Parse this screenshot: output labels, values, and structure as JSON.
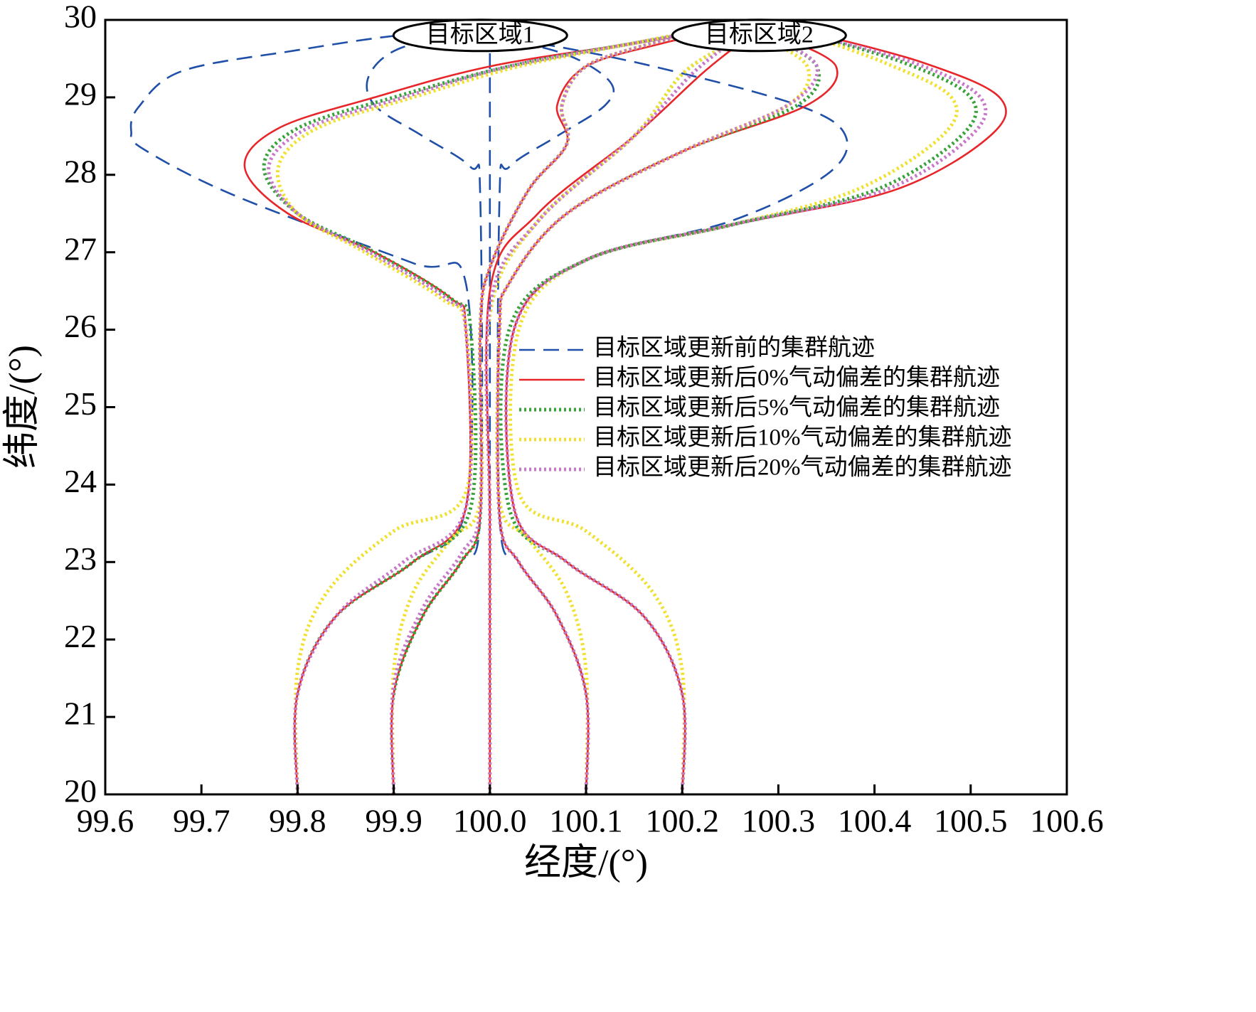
{
  "chart_data": {
    "type": "line",
    "x_label": "经度/(°)",
    "y_label": "纬度/(°)",
    "xlim": [
      99.6,
      100.6
    ],
    "ylim": [
      20,
      30
    ],
    "xticks": [
      99.6,
      99.7,
      99.8,
      99.9,
      {
        "value": 100,
        "label": "100.0"
      },
      100.1,
      100.2,
      100.3,
      100.4,
      100.5,
      100.6
    ],
    "yticks": [
      20,
      21,
      22,
      23,
      24,
      25,
      26,
      27,
      28,
      29,
      30
    ],
    "legend": "center right",
    "annotations": [
      {
        "text": "目标区域1",
        "x": 99.99,
        "y": 29.8
      },
      {
        "text": "目标区域2",
        "x": 100.28,
        "y": 29.8
      }
    ],
    "series": [
      {
        "name": "目标区域更新前的集群航迹",
        "color": "#1f4fa8",
        "dash": "dashed",
        "lines": [
          {
            "x": [
              99.8,
              99.8,
              99.84,
              99.92,
              99.975,
              99.975,
              99.92,
              99.735,
              99.64,
              99.627,
              99.635,
              99.68,
              99.8,
              99.905,
              99.98
            ],
            "y": [
              20,
              21.3,
              22.3,
              23.0,
              23.7,
              26.6,
              26.86,
              27.73,
              28.33,
              28.56,
              28.88,
              29.34,
              29.61,
              29.8,
              29.85
            ]
          },
          {
            "x": [
              99.9,
              99.9,
              99.93,
              99.97,
              99.99,
              99.99,
              99.98,
              99.93,
              99.88,
              99.875,
              99.91,
              99.99
            ],
            "y": [
              20,
              21.3,
              22.3,
              23.0,
              23.6,
              27.7,
              28.1,
              28.5,
              28.9,
              29.3,
              29.65,
              29.8
            ]
          },
          {
            "x": [
              100.0,
              100.0
            ],
            "y": [
              20,
              29.8
            ]
          },
          {
            "x": [
              100.1,
              100.1,
              100.07,
              100.03,
              100.01,
              100.01,
              100.02,
              100.07,
              100.12,
              100.125,
              100.08,
              100.0
            ],
            "y": [
              20,
              21.3,
              22.3,
              23.0,
              23.6,
              27.7,
              28.1,
              28.5,
              28.9,
              29.2,
              29.55,
              29.8
            ]
          },
          {
            "x": [
              100.2,
              100.2,
              100.16,
              100.08,
              100.025,
              100.025,
              100.1,
              100.25,
              100.35,
              100.37,
              100.32,
              100.17,
              100.05,
              99.99
            ],
            "y": [
              20,
              21.3,
              22.3,
              23.0,
              23.7,
              26.0,
              26.9,
              27.4,
              28.0,
              28.5,
              28.9,
              29.4,
              29.7,
              29.8
            ]
          }
        ]
      },
      {
        "name": "目标区域更新后0%气动偏差的集群航迹",
        "color": "#e8262a",
        "dash": "solid",
        "lines": [
          {
            "x": [
              99.8,
              99.8,
              99.84,
              99.92,
              99.975,
              99.975,
              99.96,
              99.88,
              99.79,
              99.745,
              99.78,
              99.88,
              100.0,
              100.15,
              100.23
            ],
            "y": [
              20,
              21.3,
              22.3,
              23.0,
              23.7,
              26.0,
              26.4,
              27.0,
              27.5,
              28.1,
              28.6,
              29.0,
              29.4,
              29.7,
              29.85
            ]
          },
          {
            "x": [
              99.9,
              99.9,
              99.93,
              99.97,
              99.99,
              99.99,
              100.0,
              100.04,
              100.08,
              100.07,
              100.1,
              100.18,
              100.22
            ],
            "y": [
              20,
              21.3,
              22.3,
              23.0,
              23.6,
              26.0,
              26.8,
              27.8,
              28.4,
              28.9,
              29.4,
              29.7,
              29.8
            ]
          },
          {
            "x": [
              100.0,
              100.0,
              100.0,
              100.05,
              100.15,
              100.22,
              100.26
            ],
            "y": [
              20,
              23.5,
              26.5,
              27.5,
              28.5,
              29.3,
              29.7
            ]
          },
          {
            "x": [
              100.1,
              100.1,
              100.07,
              100.03,
              100.01,
              100.01,
              100.02,
              100.08,
              100.2,
              100.33,
              100.36,
              100.3
            ],
            "y": [
              20,
              21.3,
              22.3,
              23.0,
              23.6,
              26.0,
              26.6,
              27.5,
              28.3,
              28.9,
              29.4,
              29.8
            ]
          },
          {
            "x": [
              100.2,
              100.2,
              100.16,
              100.08,
              100.025,
              100.025,
              100.1,
              100.25,
              100.42,
              100.52,
              100.53,
              100.45,
              100.33
            ],
            "y": [
              20,
              21.3,
              22.3,
              23.0,
              23.7,
              26.0,
              26.9,
              27.35,
              27.8,
              28.5,
              29.0,
              29.45,
              29.85
            ]
          }
        ]
      },
      {
        "name": "目标区域更新后5%气动偏差的集群航迹",
        "color": "#3aa23a",
        "dash": "dotted",
        "lines": [
          {
            "x": [
              99.8,
              99.8,
              99.84,
              99.92,
              99.98,
              99.98,
              99.96,
              99.88,
              99.8,
              99.765,
              99.8,
              99.9,
              100.02,
              100.15,
              100.22
            ],
            "y": [
              20,
              21.3,
              22.3,
              23.0,
              23.7,
              26.0,
              26.4,
              27.0,
              27.5,
              28.1,
              28.6,
              29.0,
              29.4,
              29.7,
              29.85
            ]
          },
          {
            "x": [
              99.9,
              99.9,
              99.93,
              99.97,
              99.99,
              99.99,
              100.0,
              100.04,
              100.08,
              100.075,
              100.1,
              100.17,
              100.21
            ],
            "y": [
              20,
              21.3,
              22.3,
              23.0,
              23.6,
              26.0,
              26.8,
              27.8,
              28.4,
              28.9,
              29.4,
              29.7,
              29.8
            ]
          },
          {
            "x": [
              100.0,
              100.0,
              100.0,
              100.05,
              100.15,
              100.2,
              100.25
            ],
            "y": [
              20,
              23.5,
              26.2,
              27.4,
              28.5,
              29.3,
              29.7
            ]
          },
          {
            "x": [
              100.1,
              100.1,
              100.07,
              100.03,
              100.01,
              100.01,
              100.02,
              100.08,
              100.2,
              100.32,
              100.34,
              100.29
            ],
            "y": [
              20,
              21.3,
              22.3,
              23.0,
              23.6,
              26.0,
              26.6,
              27.5,
              28.3,
              28.9,
              29.4,
              29.8
            ]
          },
          {
            "x": [
              100.2,
              100.2,
              100.16,
              100.08,
              100.02,
              100.02,
              100.1,
              100.25,
              100.4,
              100.49,
              100.5,
              100.43,
              100.32
            ],
            "y": [
              20,
              21.3,
              22.3,
              23.0,
              23.7,
              26.0,
              26.9,
              27.35,
              27.8,
              28.5,
              29.0,
              29.45,
              29.85
            ]
          }
        ]
      },
      {
        "name": "目标区域更新后10%气动偏差的集群航迹",
        "color": "#f0e030",
        "dash": "dotted",
        "lines": [
          {
            "x": [
              99.8,
              99.8,
              99.83,
              99.9,
              99.975,
              99.975,
              99.95,
              99.87,
              99.8,
              99.78,
              99.82,
              99.92,
              100.03,
              100.15,
              100.21
            ],
            "y": [
              20,
              21.6,
              22.6,
              23.4,
              23.9,
              26.0,
              26.4,
              27.0,
              27.5,
              28.1,
              28.6,
              29.0,
              29.4,
              29.7,
              29.85
            ]
          },
          {
            "x": [
              99.9,
              99.9,
              99.92,
              99.96,
              99.99,
              99.99,
              100.0,
              100.04,
              100.08,
              100.075,
              100.1,
              100.17,
              100.21
            ],
            "y": [
              20,
              21.6,
              22.6,
              23.3,
              23.8,
              26.0,
              26.8,
              27.8,
              28.4,
              28.9,
              29.4,
              29.7,
              29.8
            ]
          },
          {
            "x": [
              100.0,
              100.0,
              100.0,
              100.05,
              100.15,
              100.2,
              100.25
            ],
            "y": [
              20,
              23.5,
              26.2,
              27.4,
              28.5,
              29.3,
              29.7
            ]
          },
          {
            "x": [
              100.1,
              100.1,
              100.08,
              100.04,
              100.01,
              100.01,
              100.02,
              100.08,
              100.2,
              100.31,
              100.33,
              100.28
            ],
            "y": [
              20,
              21.6,
              22.6,
              23.3,
              23.8,
              26.0,
              26.6,
              27.5,
              28.3,
              28.9,
              29.4,
              29.8
            ]
          },
          {
            "x": [
              100.2,
              100.2,
              100.17,
              100.1,
              100.03,
              100.03,
              100.1,
              100.25,
              100.38,
              100.47,
              100.48,
              100.41,
              100.32
            ],
            "y": [
              20,
              21.6,
              22.6,
              23.4,
              23.9,
              26.0,
              26.9,
              27.35,
              27.8,
              28.5,
              29.0,
              29.45,
              29.85
            ]
          }
        ]
      },
      {
        "name": "目标区域更新后20%气动偏差的集群航迹",
        "color": "#c878c8",
        "dash": "dotted",
        "lines": [
          {
            "x": [
              99.8,
              99.8,
              99.84,
              99.91,
              99.975,
              99.975,
              99.955,
              99.875,
              99.8,
              99.77,
              99.81,
              99.91,
              100.02,
              100.15,
              100.22
            ],
            "y": [
              20,
              21.3,
              22.3,
              23.0,
              23.7,
              26.0,
              26.4,
              27.0,
              27.5,
              28.1,
              28.6,
              29.0,
              29.4,
              29.7,
              29.85
            ]
          },
          {
            "x": [
              99.9,
              99.9,
              99.93,
              99.97,
              99.99,
              99.99,
              100.0,
              100.04,
              100.08,
              100.075,
              100.1,
              100.17,
              100.21
            ],
            "y": [
              20,
              21.4,
              22.4,
              23.1,
              23.7,
              26.0,
              26.8,
              27.8,
              28.4,
              28.9,
              29.4,
              29.7,
              29.8
            ]
          },
          {
            "x": [
              100.0,
              100.0,
              100.0,
              100.05,
              100.15,
              100.21,
              100.25
            ],
            "y": [
              20,
              23.5,
              26.3,
              27.4,
              28.5,
              29.3,
              29.7
            ]
          },
          {
            "x": [
              100.1,
              100.1,
              100.07,
              100.03,
              100.01,
              100.01,
              100.02,
              100.08,
              100.2,
              100.31,
              100.34,
              100.29
            ],
            "y": [
              20,
              21.3,
              22.3,
              23.0,
              23.6,
              26.0,
              26.6,
              27.5,
              28.3,
              28.9,
              29.4,
              29.8
            ]
          },
          {
            "x": [
              100.2,
              100.2,
              100.16,
              100.08,
              100.025,
              100.025,
              100.1,
              100.25,
              100.41,
              100.5,
              100.51,
              100.44,
              100.32
            ],
            "y": [
              20,
              21.3,
              22.3,
              23.0,
              23.7,
              26.0,
              26.9,
              27.35,
              27.8,
              28.5,
              29.0,
              29.45,
              29.85
            ]
          }
        ]
      }
    ]
  }
}
